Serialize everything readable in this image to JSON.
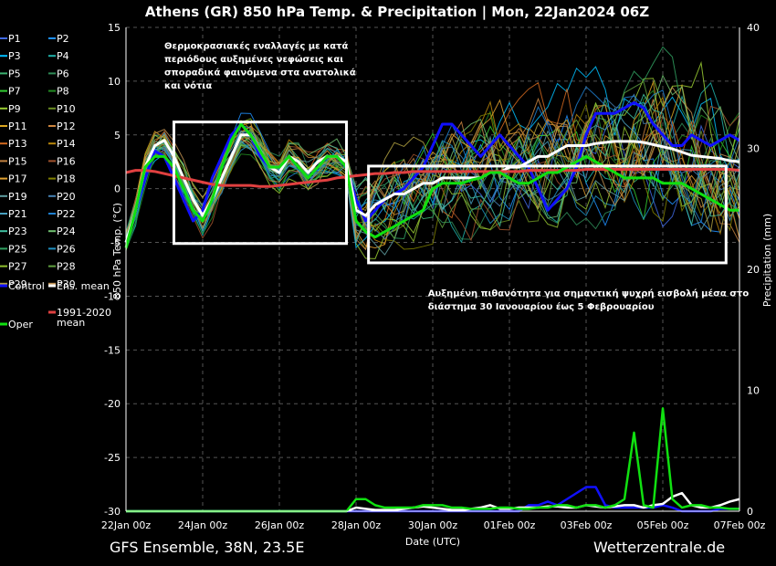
{
  "footer": {
    "left": "GFS Ensemble, 38N, 23.5E",
    "right": "Wetterzentrale.de"
  },
  "chart_data": {
    "type": "line",
    "title": "Athens  (GR)  850 hPa Temp. & Precipitation | Mon, 22Jan2024 06Z",
    "xlabel": "Date (UTC)",
    "ylabel": "850 hPa Temp. (°C)",
    "y2label": "Precipitation (mm)",
    "ylim": [
      -30,
      15
    ],
    "y2lim": [
      0,
      40
    ],
    "yticks": [
      15,
      10,
      5,
      0,
      -5,
      -10,
      -15,
      -20,
      -25,
      -30
    ],
    "y2ticks": [
      40,
      30,
      20,
      10,
      0
    ],
    "xlim": [
      0,
      64
    ],
    "xticks": [
      {
        "x": 0,
        "label": "22Jan 00z"
      },
      {
        "x": 8,
        "label": "24Jan 00z"
      },
      {
        "x": 16,
        "label": "26Jan 00z"
      },
      {
        "x": 24,
        "label": "28Jan 00z"
      },
      {
        "x": 32,
        "label": "30Jan 00z"
      },
      {
        "x": 40,
        "label": "01Feb 00z"
      },
      {
        "x": 48,
        "label": "03Feb 00z"
      },
      {
        "x": 56,
        "label": "05Feb 00z"
      },
      {
        "x": 64,
        "label": "07Feb 00z"
      }
    ],
    "grid": true,
    "legend_position": "left",
    "legend": {
      "members": [
        "P1",
        "P2",
        "P3",
        "P4",
        "P5",
        "P6",
        "P7",
        "P8",
        "P9",
        "P10",
        "P11",
        "P12",
        "P13",
        "P14",
        "P15",
        "P16",
        "P17",
        "P18",
        "P19",
        "P20",
        "P21",
        "P22",
        "P23",
        "P24",
        "P25",
        "P26",
        "P27",
        "P28",
        "P29",
        "P30"
      ],
      "control": "Control",
      "ens_mean": "Ens. mean",
      "climate_l1": "1991-2020",
      "climate_l2": "mean",
      "oper": "Oper"
    },
    "member_colors": [
      "#4169e1",
      "#1e90ff",
      "#00bfff",
      "#20b2aa",
      "#3cb371",
      "#2e8b57",
      "#32cd32",
      "#228b22",
      "#9acd32",
      "#6b8e23",
      "#daa520",
      "#cd853f",
      "#d2691e",
      "#b8860b",
      "#c08040",
      "#a0522d",
      "#e0a030",
      "#808000",
      "#5f9ea0",
      "#4682b4",
      "#48a0c0",
      "#1e7fd0",
      "#40c0a0",
      "#70c070",
      "#30a060",
      "#2090c0",
      "#90c030",
      "#60a040",
      "#b0a040",
      "#c09050"
    ],
    "series_colors": {
      "control": "#1010ff",
      "ens_mean": "#ffffff",
      "climate": "#e04040",
      "oper": "#10e010"
    },
    "series": [
      {
        "name": "Control",
        "values": [
          -5,
          -2,
          1,
          3.5,
          3,
          1,
          -1,
          -3,
          -2,
          1,
          3,
          5,
          6,
          5,
          3,
          2,
          2,
          3,
          2,
          1,
          2,
          3,
          3,
          2,
          -1,
          -3,
          -2,
          -1,
          -0.5,
          0,
          1,
          2,
          4,
          6,
          6,
          5,
          4,
          3,
          4,
          5,
          4,
          3,
          2,
          0,
          -2,
          -1,
          0,
          2,
          5,
          7,
          7,
          7,
          7.5,
          8,
          7.5,
          6,
          5,
          4,
          4,
          5,
          4.5,
          4,
          4.5,
          5,
          4.5
        ]
      },
      {
        "name": "Ens. mean",
        "values": [
          -5,
          -2,
          2,
          4,
          4.5,
          3,
          1,
          -1,
          -2.5,
          -1,
          1,
          3,
          5,
          5,
          3.5,
          2,
          1.5,
          3,
          2.5,
          1.5,
          2.5,
          3,
          3,
          2.5,
          -2,
          -2.5,
          -1.5,
          -1,
          -0.5,
          -0.5,
          0,
          0.5,
          0.5,
          1,
          1,
          1,
          1,
          1,
          1.5,
          1.5,
          2,
          2,
          2.5,
          3,
          3,
          3.5,
          4,
          4,
          4,
          4.2,
          4.3,
          4.4,
          4.4,
          4.4,
          4.3,
          4.1,
          3.9,
          3.7,
          3.4,
          3.1,
          3,
          2.9,
          2.8,
          2.6,
          2.5
        ]
      },
      {
        "name": "1991-2020 mean",
        "values": [
          1.5,
          1.7,
          1.7,
          1.6,
          1.4,
          1.2,
          1.0,
          0.8,
          0.6,
          0.4,
          0.3,
          0.3,
          0.3,
          0.3,
          0.2,
          0.2,
          0.3,
          0.4,
          0.5,
          0.6,
          0.7,
          0.8,
          1.0,
          1.1,
          1.2,
          1.3,
          1.4,
          1.4,
          1.5,
          1.5,
          1.6,
          1.6,
          1.6,
          1.6,
          1.6,
          1.6,
          1.6,
          1.6,
          1.6,
          1.6,
          1.6,
          1.6,
          1.7,
          1.7,
          1.7,
          1.7,
          1.7,
          1.7,
          1.8,
          1.8,
          1.8,
          1.8,
          1.8,
          1.8,
          1.8,
          1.8,
          1.8,
          1.8,
          1.8,
          1.8,
          1.8,
          1.8,
          1.8,
          1.8,
          1.7
        ]
      },
      {
        "name": "Oper",
        "values": [
          -5.5,
          -2,
          2,
          3,
          3,
          2,
          0,
          -2,
          -3,
          -1,
          2,
          4.5,
          6,
          5,
          3.5,
          2,
          2,
          3,
          2,
          1,
          2,
          3,
          3,
          2,
          -3,
          -4,
          -4.5,
          -4,
          -3.5,
          -3,
          -2.5,
          -2,
          0,
          0.5,
          0.5,
          0.5,
          0.8,
          1,
          1.5,
          1.5,
          1,
          0.5,
          0.5,
          1,
          1.5,
          1.5,
          2,
          2.5,
          3,
          2.5,
          2,
          1.5,
          1,
          1,
          1,
          1,
          0.5,
          0.5,
          0.5,
          0,
          -0.5,
          -1,
          -1.5,
          -2,
          -2
        ]
      }
    ],
    "precip_series": [
      {
        "name": "Control",
        "values": [
          0,
          0,
          0,
          0,
          0,
          0,
          0,
          0,
          0,
          0,
          0,
          0,
          0,
          0,
          0,
          0,
          0,
          0,
          0,
          0,
          0,
          0,
          0,
          0,
          0,
          0,
          0,
          0,
          0,
          0,
          0,
          0,
          0,
          0,
          0,
          0,
          0,
          0,
          0,
          0,
          0,
          0,
          0.5,
          0.5,
          0.8,
          0.5,
          1,
          1.5,
          2,
          2,
          0.5,
          0.3,
          0.3,
          0.3,
          0.3,
          0.3,
          0.5,
          0.3,
          0,
          0,
          0,
          0,
          0.2,
          0.2,
          0.2
        ]
      },
      {
        "name": "Ens. mean",
        "values": [
          0,
          0,
          0,
          0,
          0,
          0,
          0,
          0,
          0,
          0,
          0,
          0,
          0,
          0,
          0,
          0,
          0,
          0,
          0,
          0,
          0,
          0,
          0,
          0,
          0.3,
          0.2,
          0.1,
          0.1,
          0.1,
          0.2,
          0.3,
          0.4,
          0.3,
          0.2,
          0.1,
          0.1,
          0.2,
          0.3,
          0.5,
          0.2,
          0.2,
          0.3,
          0.3,
          0.3,
          0.4,
          0.4,
          0.3,
          0.3,
          0.5,
          0.4,
          0.3,
          0.4,
          0.5,
          0.5,
          0.3,
          0.5,
          0.6,
          1.2,
          1.5,
          0.5,
          0.3,
          0.3,
          0.5,
          0.8,
          1
        ]
      },
      {
        "name": "Oper",
        "values": [
          0,
          0,
          0,
          0,
          0,
          0,
          0,
          0,
          0,
          0,
          0,
          0,
          0,
          0,
          0,
          0,
          0,
          0,
          0,
          0,
          0,
          0,
          0,
          0,
          1,
          1,
          0.5,
          0.3,
          0.3,
          0.3,
          0.3,
          0.5,
          0.5,
          0.5,
          0.3,
          0.3,
          0.2,
          0.2,
          0.2,
          0.3,
          0.3,
          0.2,
          0.2,
          0.3,
          0.3,
          0.5,
          0.5,
          0.3,
          0.5,
          0.5,
          0.3,
          0.5,
          1,
          6.5,
          0.5,
          0.3,
          8.5,
          1,
          0.3,
          0.5,
          0.5,
          0.3,
          0.3,
          0.2,
          0.2
        ]
      }
    ],
    "annotations": [
      {
        "x": 4.0,
        "y": 13,
        "text": "Θερμοκρασιακές εναλλαγές με κατά περιόδους αυξημένες νεφώσεις και σποραδικά φαινόμενα στα ανατολικά και νότια"
      },
      {
        "x": 31.5,
        "y": -10,
        "text": "Αυξημένη πιθανότητα για σημαντική ψυχρή εισβολή μέσα στο διάστημα 30 Ιανουαρίου έως 5 Φεβρουαρίου"
      }
    ],
    "boxes": [
      {
        "x0": 5.0,
        "x1": 23.0,
        "y0": 6.2,
        "y1": -5.1
      },
      {
        "x0": 25.3,
        "x1": 62.6,
        "y0": 2.1,
        "y1": -6.9
      }
    ]
  }
}
